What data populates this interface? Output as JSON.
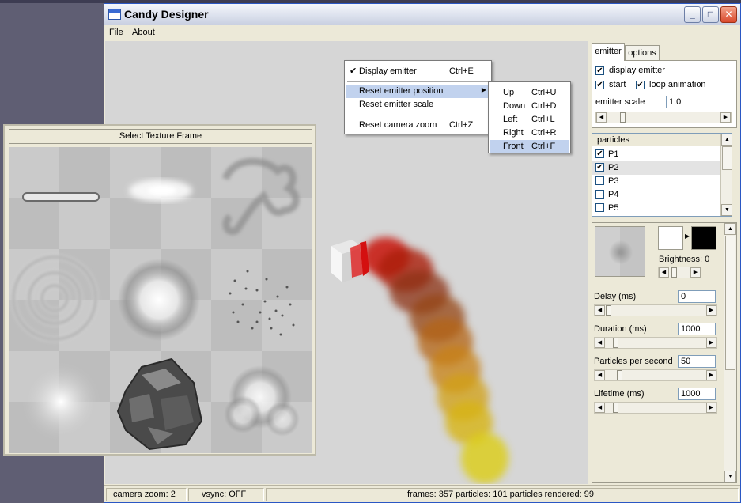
{
  "window": {
    "title": "Candy Designer",
    "minimize_glyph": "_",
    "maximize_glyph": "□",
    "close_glyph": "✕"
  },
  "menubar": {
    "items": [
      {
        "label": "File"
      },
      {
        "label": "About"
      }
    ]
  },
  "context_menu": {
    "items": [
      {
        "label": "Display emitter",
        "shortcut": "Ctrl+E",
        "checked": true
      },
      {
        "label": "Reset emitter position",
        "shortcut": "",
        "submenu": true,
        "highlighted": true
      },
      {
        "label": "Reset emitter scale",
        "shortcut": ""
      },
      {
        "label": "Reset camera zoom",
        "shortcut": "Ctrl+Z"
      }
    ],
    "check_glyph": "✔",
    "submenu_glyph": "▶"
  },
  "submenu": {
    "items": [
      {
        "label": "Up",
        "shortcut": "Ctrl+U"
      },
      {
        "label": "Down",
        "shortcut": "Ctrl+D"
      },
      {
        "label": "Left",
        "shortcut": "Ctrl+L"
      },
      {
        "label": "Right",
        "shortcut": "Ctrl+R"
      },
      {
        "label": "Front",
        "shortcut": "Ctrl+F",
        "highlighted": true
      }
    ]
  },
  "texture_selector": {
    "title": "Select Texture Frame"
  },
  "panel": {
    "tabs": [
      {
        "label": "emitter",
        "active": true
      },
      {
        "label": "options",
        "active": false
      }
    ],
    "display_emitter": {
      "label": "display emitter",
      "checked": true
    },
    "start": {
      "label": "start",
      "checked": true
    },
    "loop_animation": {
      "label": "loop animation",
      "checked": true
    },
    "emitter_scale": {
      "label": "emitter scale",
      "value": "1.0"
    },
    "particles": {
      "header": "particles",
      "items": [
        {
          "label": "P1",
          "checked": true
        },
        {
          "label": "P2",
          "checked": true,
          "selected": true
        },
        {
          "label": "P3",
          "checked": false
        },
        {
          "label": "P4",
          "checked": false
        },
        {
          "label": "P5",
          "checked": false
        }
      ]
    },
    "brightness": {
      "label": "Brightness: 0"
    },
    "start_color": "#ffffff",
    "end_color": "#000000",
    "delay": {
      "label": "Delay (ms)",
      "value": "0"
    },
    "duration": {
      "label": "Duration (ms)",
      "value": "1000"
    },
    "pps": {
      "label": "Particles per second",
      "value": "50"
    },
    "lifetime": {
      "label": "Lifetime (ms)",
      "value": "1000"
    },
    "check_glyph": "✔"
  },
  "statusbar": {
    "camera_zoom": "camera zoom: 2",
    "vsync": "vsync: OFF",
    "stats": "frames: 357  particles: 101  particles rendered: 99"
  },
  "arrows": {
    "left": "◀",
    "right": "▶",
    "up": "▲",
    "down": "▼"
  }
}
